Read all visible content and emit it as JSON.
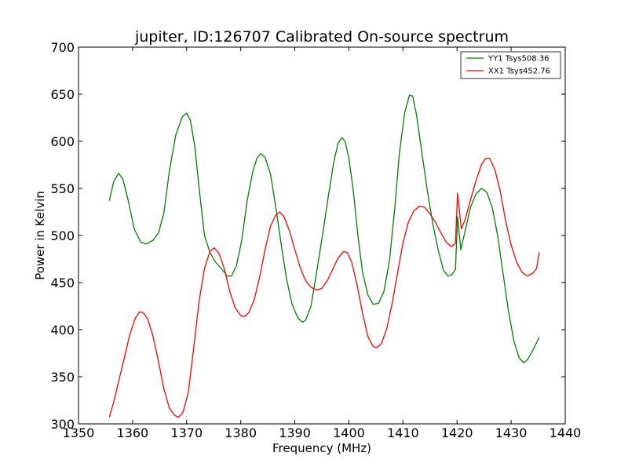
{
  "chart_data": {
    "type": "line",
    "title": "jupiter, ID:126707 Calibrated On-source spectrum",
    "xlabel": "Frequency (MHz)",
    "ylabel": "Power in Kelvin",
    "xlim": [
      1350,
      1440
    ],
    "ylim": [
      300,
      700
    ],
    "xticks": [
      1350,
      1360,
      1370,
      1380,
      1390,
      1400,
      1410,
      1420,
      1430,
      1440
    ],
    "yticks": [
      300,
      350,
      400,
      450,
      500,
      550,
      600,
      650,
      700
    ],
    "grid": false,
    "legend_position": "top-right",
    "series": [
      {
        "name": "YY1 Tsys508.36",
        "color": "#008000",
        "points": [
          [
            1355.7,
            537
          ],
          [
            1356.5,
            557
          ],
          [
            1357.4,
            566
          ],
          [
            1358.2,
            560
          ],
          [
            1359.2,
            537
          ],
          [
            1360.3,
            507
          ],
          [
            1361.5,
            493
          ],
          [
            1362.5,
            491
          ],
          [
            1363.8,
            495
          ],
          [
            1364.8,
            503
          ],
          [
            1365.8,
            524
          ],
          [
            1366.8,
            568
          ],
          [
            1368.0,
            607
          ],
          [
            1369.2,
            626
          ],
          [
            1370.0,
            630
          ],
          [
            1370.7,
            622
          ],
          [
            1371.5,
            595
          ],
          [
            1372.5,
            540
          ],
          [
            1373.3,
            500
          ],
          [
            1374.3,
            482
          ],
          [
            1375.3,
            472
          ],
          [
            1376.4,
            465
          ],
          [
            1377.5,
            457
          ],
          [
            1378.3,
            457
          ],
          [
            1379.2,
            468
          ],
          [
            1380.2,
            495
          ],
          [
            1381.2,
            537
          ],
          [
            1382.2,
            567
          ],
          [
            1383.0,
            582
          ],
          [
            1383.7,
            587
          ],
          [
            1384.5,
            583
          ],
          [
            1385.5,
            565
          ],
          [
            1386.5,
            530
          ],
          [
            1387.5,
            490
          ],
          [
            1388.5,
            453
          ],
          [
            1389.5,
            427
          ],
          [
            1390.5,
            413
          ],
          [
            1391.4,
            408
          ],
          [
            1392.0,
            410
          ],
          [
            1393.0,
            425
          ],
          [
            1394.0,
            460
          ],
          [
            1395.2,
            503
          ],
          [
            1396.2,
            542
          ],
          [
            1397.2,
            578
          ],
          [
            1398.0,
            598
          ],
          [
            1398.7,
            604
          ],
          [
            1399.3,
            600
          ],
          [
            1400.0,
            582
          ],
          [
            1400.8,
            548
          ],
          [
            1401.7,
            498
          ],
          [
            1402.5,
            462
          ],
          [
            1403.5,
            437
          ],
          [
            1404.5,
            427
          ],
          [
            1405.5,
            428
          ],
          [
            1406.5,
            441
          ],
          [
            1407.5,
            473
          ],
          [
            1408.5,
            530
          ],
          [
            1409.3,
            585
          ],
          [
            1410.3,
            630
          ],
          [
            1411.2,
            649
          ],
          [
            1411.8,
            648
          ],
          [
            1412.5,
            628
          ],
          [
            1413.5,
            588
          ],
          [
            1414.5,
            548
          ],
          [
            1415.5,
            513
          ],
          [
            1416.5,
            485
          ],
          [
            1417.5,
            463
          ],
          [
            1418.3,
            457
          ],
          [
            1419.0,
            458
          ],
          [
            1419.7,
            464
          ],
          [
            1420.1,
            520
          ],
          [
            1420.7,
            485
          ],
          [
            1421.5,
            505
          ],
          [
            1422.5,
            530
          ],
          [
            1423.5,
            544
          ],
          [
            1424.5,
            550
          ],
          [
            1425.5,
            546
          ],
          [
            1426.5,
            530
          ],
          [
            1427.5,
            500
          ],
          [
            1428.5,
            460
          ],
          [
            1429.5,
            420
          ],
          [
            1430.5,
            388
          ],
          [
            1431.5,
            370
          ],
          [
            1432.3,
            365
          ],
          [
            1433.0,
            368
          ],
          [
            1434.0,
            378
          ],
          [
            1435.2,
            392
          ]
        ]
      },
      {
        "name": "XX1 Tsys452.76",
        "color": "#ff0000",
        "points": [
          [
            1355.7,
            307
          ],
          [
            1356.5,
            323
          ],
          [
            1357.5,
            347
          ],
          [
            1358.5,
            371
          ],
          [
            1359.5,
            395
          ],
          [
            1360.5,
            412
          ],
          [
            1361.3,
            419
          ],
          [
            1362.0,
            418
          ],
          [
            1362.8,
            411
          ],
          [
            1363.7,
            395
          ],
          [
            1364.8,
            366
          ],
          [
            1365.8,
            337
          ],
          [
            1366.8,
            317
          ],
          [
            1367.8,
            309
          ],
          [
            1368.5,
            307
          ],
          [
            1369.3,
            312
          ],
          [
            1370.3,
            333
          ],
          [
            1371.3,
            380
          ],
          [
            1372.3,
            430
          ],
          [
            1373.3,
            465
          ],
          [
            1374.3,
            483
          ],
          [
            1375.1,
            487
          ],
          [
            1376.0,
            481
          ],
          [
            1377.0,
            464
          ],
          [
            1378.0,
            440
          ],
          [
            1379.0,
            423
          ],
          [
            1380.0,
            415
          ],
          [
            1380.7,
            414
          ],
          [
            1381.5,
            418
          ],
          [
            1382.5,
            432
          ],
          [
            1383.5,
            456
          ],
          [
            1384.5,
            485
          ],
          [
            1385.5,
            510
          ],
          [
            1386.5,
            522
          ],
          [
            1387.2,
            525
          ],
          [
            1388.0,
            520
          ],
          [
            1389.0,
            505
          ],
          [
            1390.0,
            485
          ],
          [
            1391.0,
            466
          ],
          [
            1392.0,
            452
          ],
          [
            1393.0,
            445
          ],
          [
            1394.0,
            442
          ],
          [
            1395.0,
            444
          ],
          [
            1396.0,
            452
          ],
          [
            1397.0,
            464
          ],
          [
            1398.0,
            476
          ],
          [
            1399.0,
            483
          ],
          [
            1399.7,
            482
          ],
          [
            1400.5,
            472
          ],
          [
            1401.5,
            448
          ],
          [
            1402.5,
            418
          ],
          [
            1403.5,
            393
          ],
          [
            1404.5,
            382
          ],
          [
            1405.2,
            381
          ],
          [
            1406.0,
            385
          ],
          [
            1407.0,
            401
          ],
          [
            1408.0,
            428
          ],
          [
            1409.0,
            460
          ],
          [
            1410.0,
            492
          ],
          [
            1411.0,
            514
          ],
          [
            1412.0,
            526
          ],
          [
            1413.0,
            531
          ],
          [
            1414.0,
            530
          ],
          [
            1415.0,
            523
          ],
          [
            1416.0,
            514
          ],
          [
            1417.0,
            503
          ],
          [
            1418.0,
            493
          ],
          [
            1419.0,
            488
          ],
          [
            1419.7,
            492
          ],
          [
            1420.1,
            545
          ],
          [
            1420.8,
            507
          ],
          [
            1421.5,
            517
          ],
          [
            1422.5,
            538
          ],
          [
            1423.5,
            558
          ],
          [
            1424.5,
            575
          ],
          [
            1425.3,
            582
          ],
          [
            1426.0,
            582
          ],
          [
            1427.0,
            570
          ],
          [
            1428.0,
            547
          ],
          [
            1429.0,
            515
          ],
          [
            1430.0,
            490
          ],
          [
            1431.0,
            472
          ],
          [
            1432.0,
            461
          ],
          [
            1433.0,
            457
          ],
          [
            1434.0,
            460
          ],
          [
            1434.7,
            465
          ],
          [
            1435.2,
            482
          ]
        ]
      }
    ]
  }
}
